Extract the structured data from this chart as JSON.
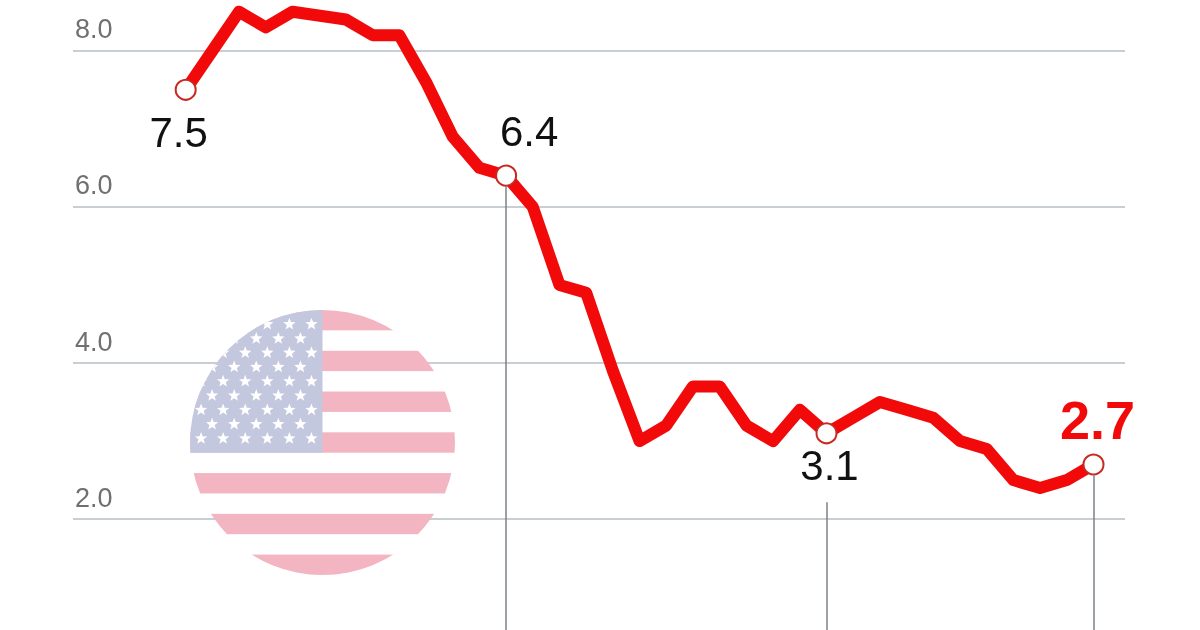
{
  "chart_data": {
    "type": "line",
    "categories": [
      null,
      null,
      null,
      null,
      null,
      null,
      null,
      null,
      null,
      null,
      null,
      null,
      null,
      null,
      null,
      null,
      null,
      null,
      null,
      null,
      null,
      null,
      null,
      null,
      null,
      null,
      null,
      null,
      null,
      null,
      null,
      null,
      null,
      null,
      null
    ],
    "values": [
      7.5,
      8.0,
      8.5,
      8.3,
      8.5,
      null,
      8.4,
      8.2,
      8.2,
      7.6,
      6.9,
      6.5,
      6.4,
      6.0,
      5.0,
      4.9,
      3.9,
      3.0,
      3.2,
      3.7,
      3.7,
      3.2,
      3.0,
      3.4,
      3.1,
      3.3,
      3.5,
      3.4,
      3.3,
      3.0,
      2.9,
      2.5,
      2.4,
      2.5,
      2.7
    ],
    "value_labels": [
      "7.5",
      null,
      null,
      null,
      null,
      null,
      null,
      null,
      null,
      null,
      null,
      null,
      "6.4",
      null,
      null,
      null,
      null,
      null,
      null,
      null,
      null,
      null,
      null,
      null,
      "3.1",
      null,
      null,
      null,
      null,
      null,
      null,
      null,
      null,
      null,
      "2.7"
    ],
    "color": "#f20a0a",
    "ylim": [
      0.58,
      8.65
    ],
    "yticks": [
      {
        "value": 2,
        "label": "2.0"
      },
      {
        "value": 4,
        "label": "4.0"
      },
      {
        "value": 6,
        "label": "6.0"
      },
      {
        "value": 8,
        "label": "8.0"
      }
    ],
    "grid": "y",
    "tick_labels": "y",
    "line_style": "solid"
  }
}
